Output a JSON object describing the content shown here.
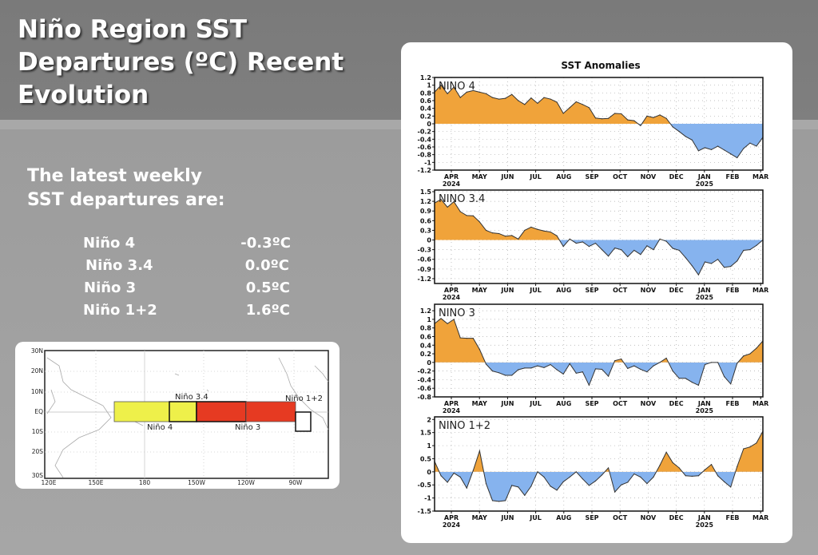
{
  "slide": {
    "title": "Niño Region SST Departures (ºC) Recent Evolution",
    "title_lines": [
      "Niño Region SST",
      "Departures (ºC) Recent",
      "Evolution"
    ],
    "intro_lines": [
      "The latest weekly",
      "SST departures are:"
    ],
    "latest_values": [
      {
        "region": "Niño 4",
        "value": "-0.3ºC"
      },
      {
        "region": "Niño 3.4",
        "value": "0.0ºC"
      },
      {
        "region": "Niño 3",
        "value": "0.5ºC"
      },
      {
        "region": "Niño 1+2",
        "value": "1.6ºC"
      }
    ]
  },
  "map": {
    "lat_labels": [
      "30N",
      "20N",
      "10N",
      "EQ",
      "10S",
      "20S",
      "30S"
    ],
    "lon_labels": [
      "120E",
      "150E",
      "180",
      "150W",
      "120W",
      "90W"
    ],
    "regions": [
      {
        "name": "Niño 4",
        "color": "#eef04a"
      },
      {
        "name": "Niño 3.4",
        "color": "#eef04a"
      },
      {
        "name": "Niño 3",
        "color": "#e63a22"
      },
      {
        "name": "Niño 1+2",
        "color": "#ffffff"
      }
    ],
    "labels": {
      "nino4": "Niño 4",
      "nino34": "Niño 3.4",
      "nino3": "Niño 3",
      "nino12": "Niño 1+2"
    }
  },
  "chart_data": [
    {
      "type": "area",
      "title": "SST Anomalies",
      "panel_label": "NINO 4",
      "x_tick_labels": [
        "APR",
        "MAY",
        "JUN",
        "JUL",
        "AUG",
        "SEP",
        "OCT",
        "NOV",
        "DEC",
        "JAN",
        "FEB",
        "MAR"
      ],
      "x_year_labels": {
        "APR": "2024",
        "JAN": "2025"
      },
      "ylim": [
        -1.2,
        1.2
      ],
      "y_ticks": [
        "1.2",
        "1",
        "0.8",
        "0.6",
        "0.4",
        "0.2",
        "0",
        "-0.2",
        "-0.4",
        "-0.6",
        "-0.8",
        "-1",
        "-1.2"
      ],
      "positive_color": "#f0a33a",
      "negative_color": "#86b3ee",
      "grid": true,
      "values": [
        0.82,
        1.0,
        0.78,
        0.95,
        0.68,
        0.82,
        0.86,
        0.82,
        0.78,
        0.68,
        0.64,
        0.66,
        0.76,
        0.6,
        0.5,
        0.67,
        0.53,
        0.68,
        0.64,
        0.56,
        0.27,
        0.42,
        0.57,
        0.5,
        0.42,
        0.15,
        0.13,
        0.14,
        0.27,
        0.26,
        0.1,
        0.08,
        -0.05,
        0.2,
        0.16,
        0.23,
        0.14,
        -0.08,
        -0.2,
        -0.33,
        -0.42,
        -0.7,
        -0.62,
        -0.67,
        -0.58,
        -0.68,
        -0.78,
        -0.88,
        -0.64,
        -0.5,
        -0.58,
        -0.35
      ]
    },
    {
      "type": "area",
      "panel_label": "NINO 3.4",
      "x_tick_labels": [
        "APR",
        "MAY",
        "JUN",
        "JUL",
        "AUG",
        "SEP",
        "OCT",
        "NOV",
        "DEC",
        "JAN",
        "FEB",
        "MAR"
      ],
      "x_year_labels": {
        "APR": "2024",
        "JAN": "2025"
      },
      "ylim": [
        -1.35,
        1.55
      ],
      "y_ticks": [
        "1.5",
        "1.2",
        "0.9",
        "0.6",
        "0.3",
        "0",
        "-0.3",
        "-0.6",
        "-0.9",
        "-1.2"
      ],
      "positive_color": "#f0a33a",
      "negative_color": "#86b3ee",
      "grid": true,
      "values": [
        1.15,
        1.26,
        1.02,
        1.19,
        0.88,
        0.76,
        0.75,
        0.56,
        0.3,
        0.22,
        0.2,
        0.12,
        0.14,
        0.03,
        0.3,
        0.4,
        0.33,
        0.28,
        0.25,
        0.13,
        -0.2,
        0.03,
        -0.1,
        -0.06,
        -0.2,
        -0.1,
        -0.3,
        -0.5,
        -0.25,
        -0.3,
        -0.52,
        -0.32,
        -0.45,
        -0.18,
        -0.3,
        0.03,
        -0.04,
        -0.26,
        -0.32,
        -0.55,
        -0.8,
        -1.08,
        -0.68,
        -0.73,
        -0.6,
        -0.85,
        -0.82,
        -0.65,
        -0.32,
        -0.3,
        -0.17,
        0.0
      ]
    },
    {
      "type": "area",
      "panel_label": "NINO 3",
      "x_tick_labels": [
        "APR",
        "MAY",
        "JUN",
        "JUL",
        "AUG",
        "SEP",
        "OCT",
        "NOV",
        "DEC",
        "JAN",
        "FEB",
        "MAR"
      ],
      "x_year_labels": {
        "APR": "2024",
        "JAN": "2025"
      },
      "ylim": [
        -0.8,
        1.35
      ],
      "y_ticks": [
        "1.2",
        "1",
        "0.8",
        "0.6",
        "0.4",
        "0.2",
        "0",
        "-0.2",
        "-0.4",
        "-0.6",
        "-0.8"
      ],
      "positive_color": "#f0a33a",
      "negative_color": "#86b3ee",
      "grid": true,
      "values": [
        0.9,
        1.02,
        0.9,
        1.0,
        0.57,
        0.56,
        0.56,
        0.3,
        -0.04,
        -0.2,
        -0.24,
        -0.3,
        -0.3,
        -0.17,
        -0.13,
        -0.13,
        -0.08,
        -0.12,
        -0.05,
        -0.17,
        -0.27,
        -0.03,
        -0.25,
        -0.22,
        -0.53,
        -0.15,
        -0.16,
        -0.32,
        0.04,
        0.08,
        -0.14,
        -0.08,
        -0.16,
        -0.22,
        -0.08,
        0.0,
        0.1,
        -0.2,
        -0.37,
        -0.37,
        -0.46,
        -0.53,
        -0.05,
        0.0,
        0.0,
        -0.33,
        -0.5,
        -0.02,
        0.15,
        0.2,
        0.33,
        0.5
      ]
    },
    {
      "type": "area",
      "panel_label": "NINO 1+2",
      "x_tick_labels": [
        "APR",
        "MAY",
        "JUN",
        "JUL",
        "AUG",
        "SEP",
        "OCT",
        "NOV",
        "DEC",
        "JAN",
        "FEB",
        "MAR"
      ],
      "x_year_labels": {
        "APR": "2024",
        "JAN": "2025"
      },
      "ylim": [
        -1.5,
        2.1
      ],
      "y_ticks": [
        "2",
        "1.5",
        "1",
        "0.5",
        "0",
        "-0.5",
        "-1",
        "-1.5"
      ],
      "positive_color": "#f0a33a",
      "negative_color": "#86b3ee",
      "grid": true,
      "values": [
        0.4,
        -0.15,
        -0.4,
        -0.05,
        -0.2,
        -0.62,
        0.05,
        0.8,
        -0.45,
        -1.1,
        -1.13,
        -1.1,
        -0.52,
        -0.58,
        -0.9,
        -0.55,
        0.0,
        -0.2,
        -0.55,
        -0.7,
        -0.38,
        -0.2,
        0.0,
        -0.27,
        -0.52,
        -0.35,
        -0.12,
        0.15,
        -0.77,
        -0.5,
        -0.4,
        -0.08,
        -0.2,
        -0.45,
        -0.2,
        0.25,
        0.75,
        0.35,
        0.15,
        -0.15,
        -0.17,
        -0.15,
        0.08,
        0.28,
        -0.15,
        -0.38,
        -0.58,
        0.2,
        0.88,
        0.95,
        1.1,
        1.55
      ]
    }
  ]
}
